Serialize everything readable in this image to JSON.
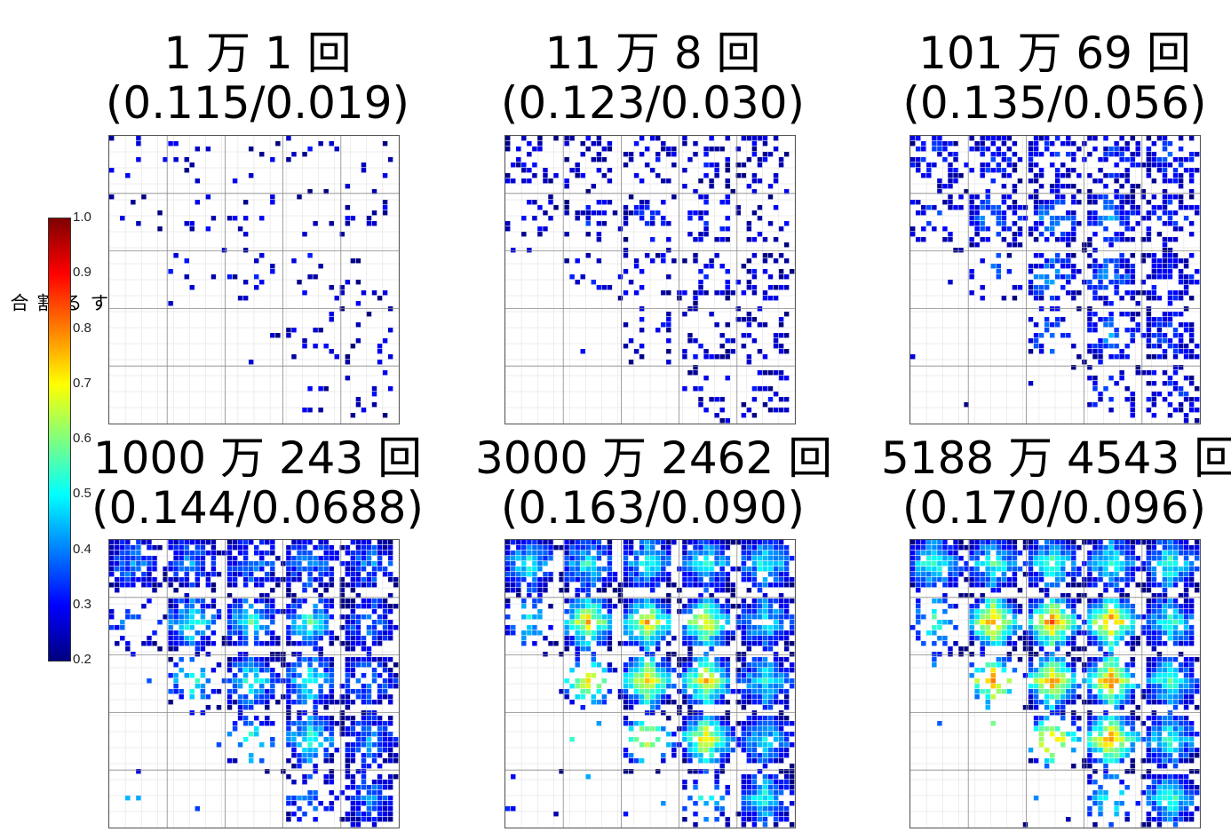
{
  "colorbar": {
    "label": "最大値に対する割合",
    "ticks": [
      "1.0",
      "0.9",
      "0.8",
      "0.7",
      "0.6",
      "0.5",
      "0.4",
      "0.3",
      "0.2"
    ],
    "colormap": "jet",
    "range": [
      0.2,
      1.0
    ]
  },
  "chart_data": [
    {
      "type": "heatmap",
      "title_line1": "1 万 1 回",
      "title_line2": "(0.115/0.019)",
      "max": 0.115,
      "mean": 0.019
    },
    {
      "type": "heatmap",
      "title_line1": "11 万 8 回",
      "title_line2": "(0.123/0.030)",
      "max": 0.123,
      "mean": 0.03
    },
    {
      "type": "heatmap",
      "title_line1": "101 万 69 回",
      "title_line2": "(0.135/0.056)",
      "max": 0.135,
      "mean": 0.056
    },
    {
      "type": "heatmap",
      "title_line1": "1000 万 243 回",
      "title_line2": "(0.144/0.0688)",
      "max": 0.144,
      "mean": 0.0688
    },
    {
      "type": "heatmap",
      "title_line1": "3000 万 2462 回",
      "title_line2": "(0.163/0.090)",
      "max": 0.163,
      "mean": 0.09
    },
    {
      "type": "heatmap",
      "title_line1": "5188 万 4543 回",
      "title_line2": "(0.170/0.096)",
      "max": 0.17,
      "mean": 0.096
    }
  ]
}
